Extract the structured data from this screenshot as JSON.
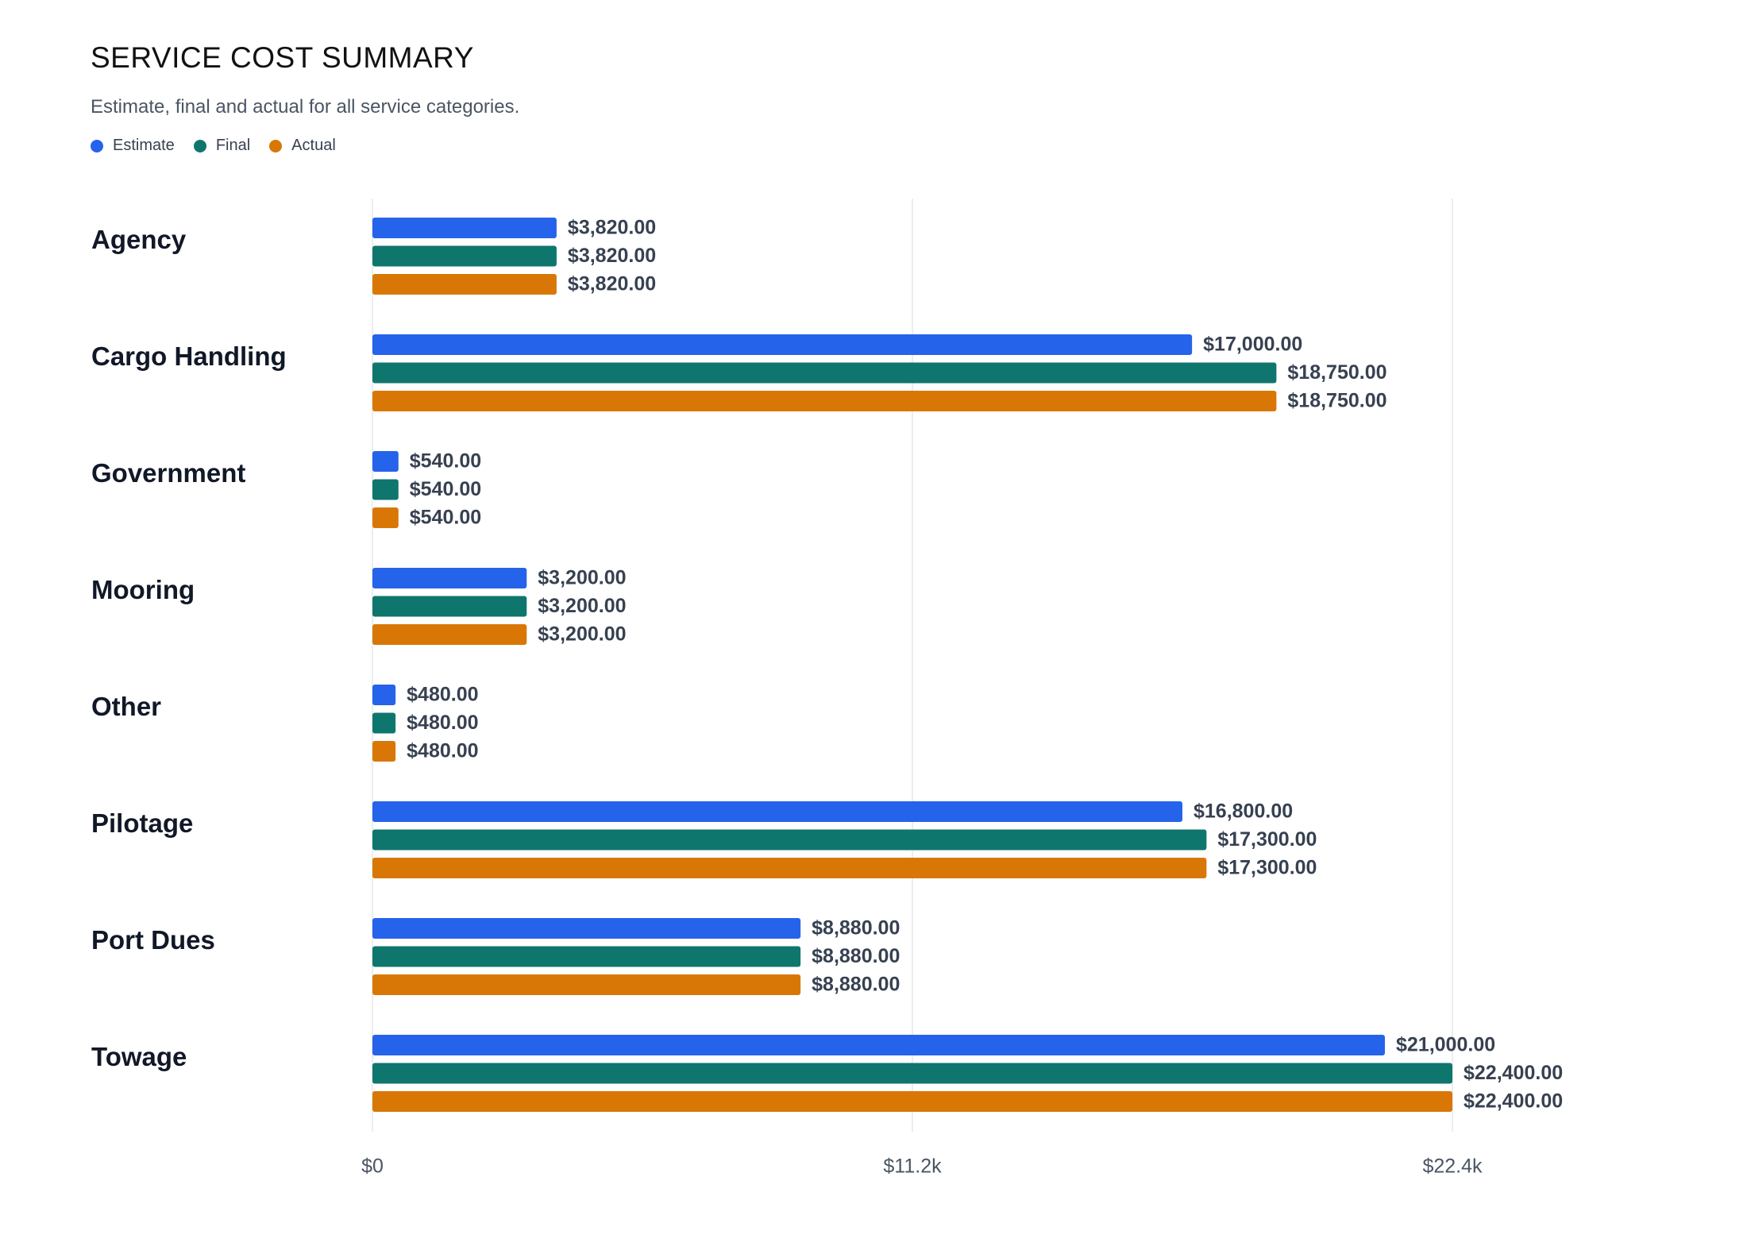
{
  "colors": {
    "estimate": "#2563eb",
    "final": "#0f766e",
    "actual": "#d97706",
    "grid": "#e5e7eb"
  },
  "chart_data": {
    "type": "bar",
    "orientation": "horizontal",
    "title": "SERVICE COST SUMMARY",
    "subtitle": "Estimate, final and actual for all service categories.",
    "categories": [
      "Agency",
      "Cargo Handling",
      "Government",
      "Mooring",
      "Other",
      "Pilotage",
      "Port Dues",
      "Towage"
    ],
    "series": [
      {
        "name": "Estimate",
        "color": "#2563eb",
        "values": [
          3820,
          17000,
          540,
          3200,
          480,
          16800,
          8880,
          21000
        ],
        "labels": [
          "$3,820.00",
          "$17,000.00",
          "$540.00",
          "$3,200.00",
          "$480.00",
          "$16,800.00",
          "$8,880.00",
          "$21,000.00"
        ]
      },
      {
        "name": "Final",
        "color": "#0f766e",
        "values": [
          3820,
          18750,
          540,
          3200,
          480,
          17300,
          8880,
          22400
        ],
        "labels": [
          "$3,820.00",
          "$18,750.00",
          "$540.00",
          "$3,200.00",
          "$480.00",
          "$17,300.00",
          "$8,880.00",
          "$22,400.00"
        ]
      },
      {
        "name": "Actual",
        "color": "#d97706",
        "values": [
          3820,
          18750,
          540,
          3200,
          480,
          17300,
          8880,
          22400
        ],
        "labels": [
          "$3,820.00",
          "$18,750.00",
          "$540.00",
          "$3,200.00",
          "$480.00",
          "$17,300.00",
          "$8,880.00",
          "$22,400.00"
        ]
      }
    ],
    "xlim": [
      0,
      22400
    ],
    "xticks": [
      0,
      11200,
      22400
    ],
    "xtick_labels": [
      "$0",
      "$11.2k",
      "$22.4k"
    ],
    "grid": true,
    "legend": "top-left"
  }
}
